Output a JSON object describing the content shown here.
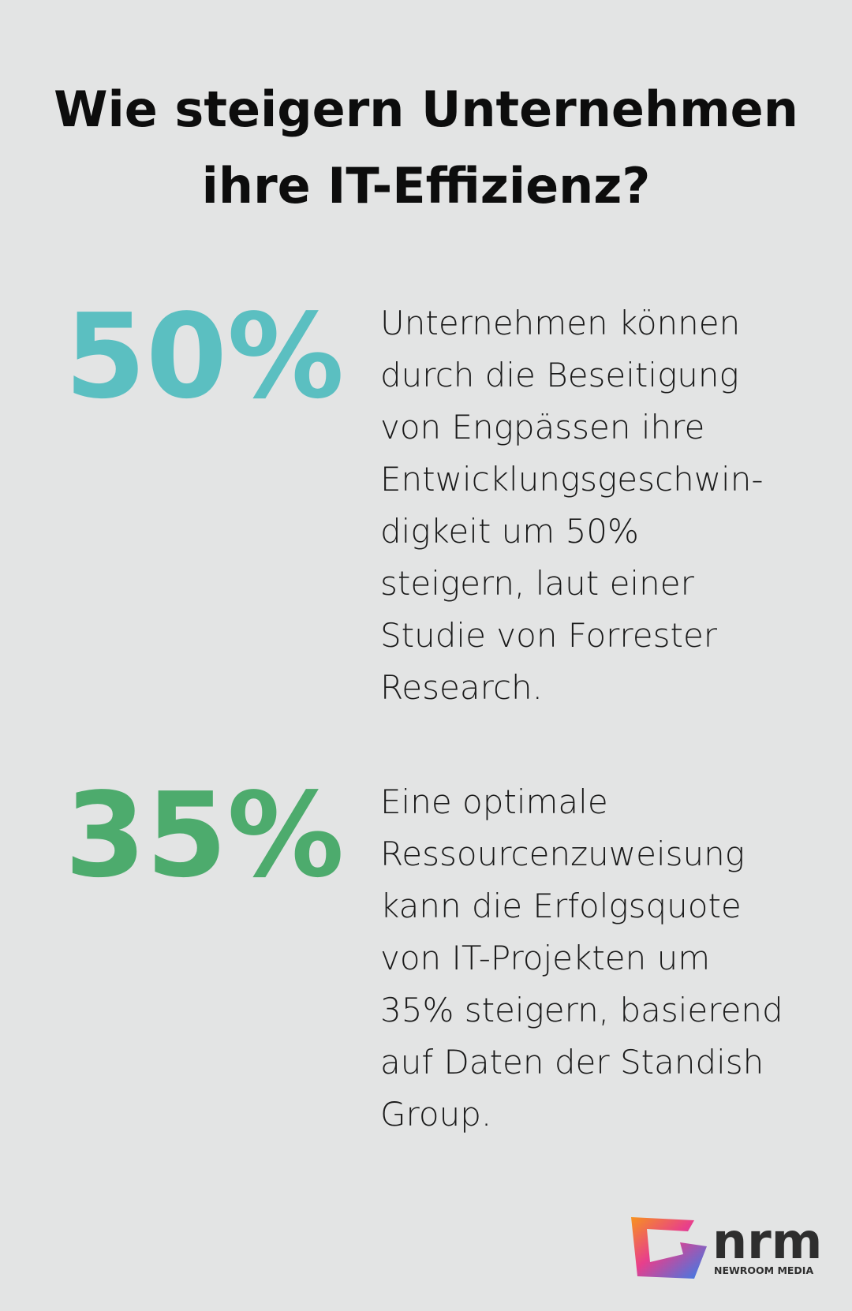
{
  "header": {
    "title_lines": [
      "Wie steigern Unternehmen",
      "ihre IT-Effizienz?"
    ]
  },
  "stats": [
    {
      "value": "50%",
      "color": "#5bbfc1",
      "text_lines": [
        "Unternehmen können",
        "durch die Beseitigung",
        "von Engpässen ihre",
        "Entwicklungsgeschwin-",
        "digkeit um 50%",
        "steigern, laut einer",
        "Studie von Forrester",
        "Research."
      ]
    },
    {
      "value": "35%",
      "color": "#4dab6d",
      "text_lines": [
        "Eine optimale",
        "Ressourcenzuweisung",
        "kann die Erfolgsquote",
        "von IT-Projekten um",
        "35% steigern, basierend",
        "auf Daten der Standish",
        "Group."
      ]
    }
  ],
  "logo": {
    "name": "nrm",
    "subtitle": "NEWROOM MEDIA"
  }
}
